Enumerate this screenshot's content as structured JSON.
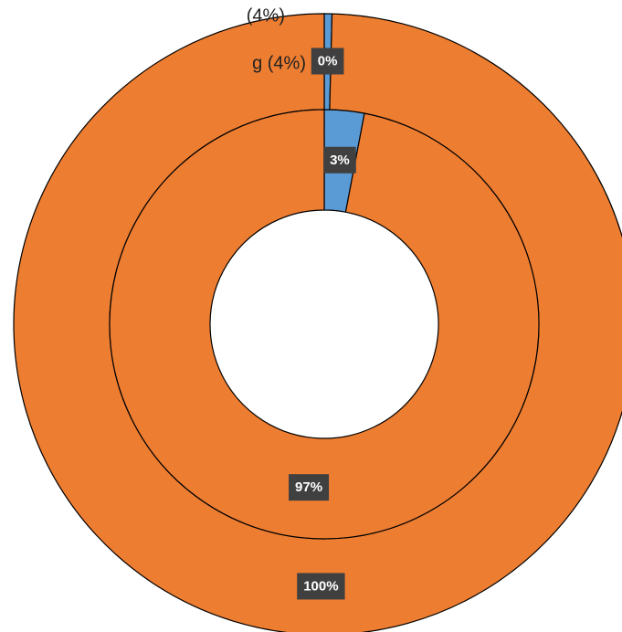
{
  "chart_data": {
    "type": "doughnut",
    "legend_labels": [
      "(4%)",
      "g (4%)"
    ],
    "colors": [
      "#5B9BD5",
      "#ED7D31"
    ],
    "series": [
      {
        "values": [
          0.4,
          99.6
        ],
        "value_labels": [
          "0%",
          "100%"
        ]
      },
      {
        "values": [
          3,
          97
        ],
        "value_labels": [
          "3%",
          "97%"
        ]
      }
    ]
  }
}
